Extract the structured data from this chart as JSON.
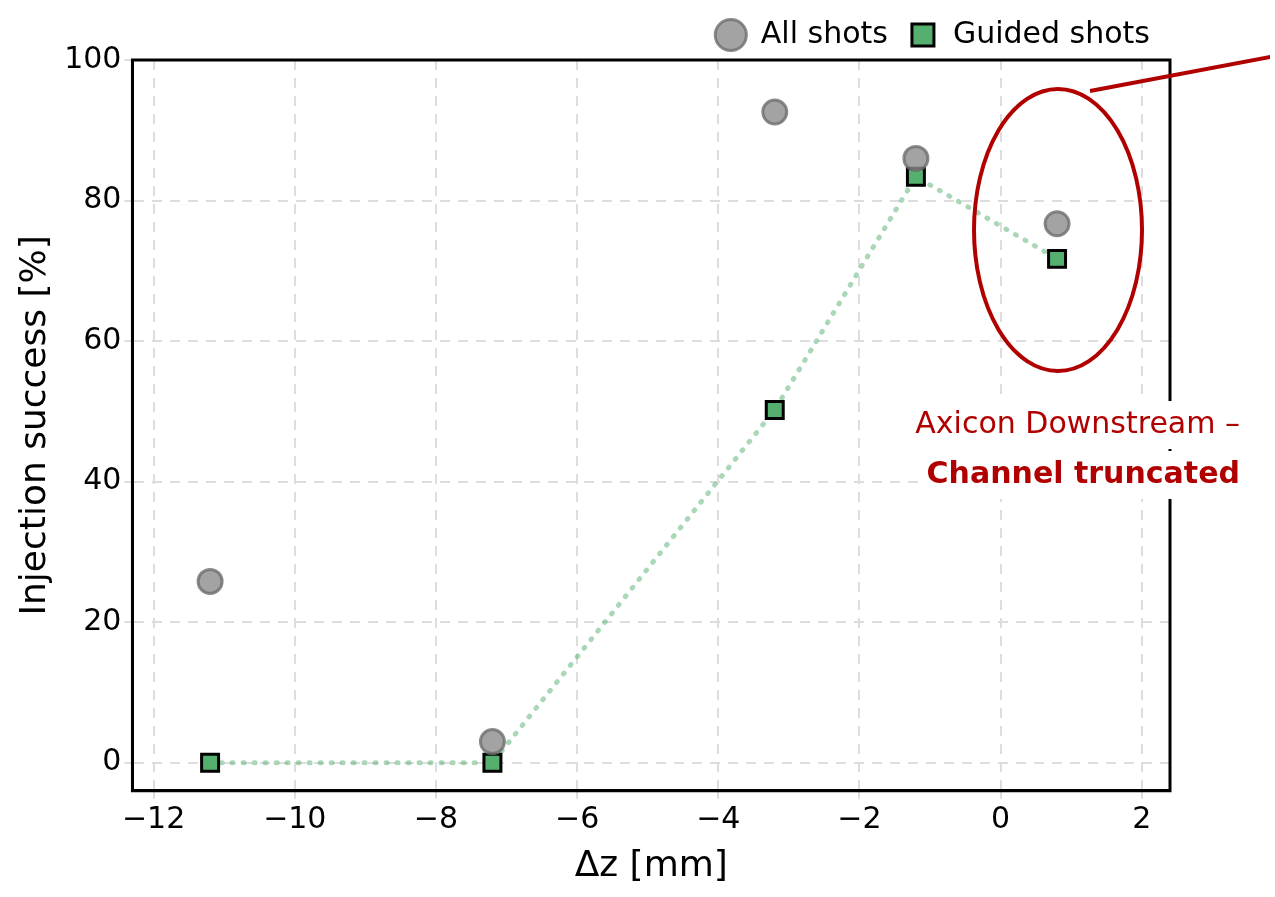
{
  "chart_data": {
    "type": "scatter",
    "xlabel": "Δz [mm]",
    "ylabel": "Injection success [%]",
    "x": [
      -11.2,
      -7.2,
      -3.2,
      -1.2,
      0.8
    ],
    "series": [
      {
        "name": "All shots",
        "color": "#8c8c8c",
        "marker": "circle",
        "values": [
          25.8,
          3,
          92.6,
          86,
          76.7
        ]
      },
      {
        "name": "Guided shots",
        "type": "line",
        "color": "#55b070",
        "marker": "square",
        "line_style": "dotted",
        "values": [
          0,
          0,
          50.2,
          83.4,
          71.7
        ]
      }
    ],
    "xlim": [
      -12.3,
      2.4
    ],
    "xticks": [
      {
        "value": -12,
        "label": "−12"
      },
      {
        "value": -10,
        "label": "−10"
      },
      {
        "value": -8,
        "label": "−8"
      },
      {
        "value": -6,
        "label": "−6"
      },
      {
        "value": -4,
        "label": "−4"
      },
      {
        "value": -2,
        "label": "−2"
      },
      0,
      2
    ],
    "ylim": [
      -4,
      100
    ],
    "yticks": [
      0,
      20,
      40,
      60,
      80,
      100
    ],
    "grid": true,
    "legend": "top",
    "annotations": [
      "Axicon Downstream –",
      "Channel truncated"
    ]
  }
}
